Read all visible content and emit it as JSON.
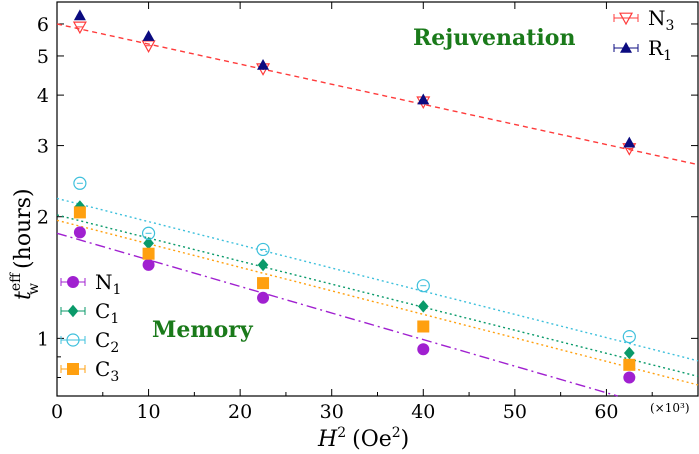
{
  "chart_data": {
    "type": "scatter",
    "xlabel": "H",
    "xlabel_sup": "2",
    "xlabel_units": "(Oe",
    "xlabel_units_sup": "2",
    "xlabel_units_end": ")",
    "ylabel": "t",
    "ylabel_sup": "eff",
    "ylabel_sub": "w",
    "ylabel_units": "(hours)",
    "x_scale_note": "(×10³)",
    "xlim": [
      0,
      70
    ],
    "ylim": [
      0.72,
      6.8
    ],
    "y_scale": "log",
    "xticks": [
      0,
      10,
      20,
      30,
      40,
      50,
      60
    ],
    "xtick_labels": [
      "0",
      "10",
      "20",
      "30",
      "40",
      "50",
      "60"
    ],
    "yticks": [
      1,
      2,
      3,
      4,
      5,
      6
    ],
    "ytick_labels": [
      "1",
      "2",
      "3",
      "4",
      "5",
      "6"
    ],
    "x_points": [
      2.5,
      10,
      22.5,
      40,
      62.5
    ],
    "annotations": [
      {
        "text": "Rejuvenation",
        "key": "rejuvenation"
      },
      {
        "text": "Memory",
        "key": "memory"
      }
    ],
    "series": [
      {
        "name": "N",
        "sub": "3",
        "marker": "triangle-down-open",
        "color": "#ff3b3b",
        "values": [
          5.9,
          5.3,
          4.65,
          3.85,
          2.95
        ],
        "fit": [
          6.0,
          2.85
        ],
        "dash": "5,4"
      },
      {
        "name": "R",
        "sub": "1",
        "marker": "triangle-up-filled",
        "color": "#0b0b80",
        "values": [
          6.3,
          5.6,
          4.75,
          3.9,
          3.05
        ],
        "fit": null,
        "dash": null
      },
      {
        "name": "N",
        "sub": "1",
        "marker": "circle-filled",
        "color": "#a020d0",
        "values": [
          1.83,
          1.52,
          1.26,
          0.94,
          0.8
        ],
        "fit": [
          1.82,
          0.68
        ],
        "dash": "10,4,2,4"
      },
      {
        "name": "C",
        "sub": "1",
        "marker": "diamond-filled",
        "color": "#0a9a6a",
        "values": [
          2.12,
          1.72,
          1.52,
          1.2,
          0.92
        ],
        "fit": [
          2.02,
          0.86
        ],
        "dash": "2,3"
      },
      {
        "name": "C",
        "sub": "2",
        "marker": "circle-open",
        "color": "#3ec0dc",
        "values": [
          2.42,
          1.82,
          1.66,
          1.35,
          1.01
        ],
        "fit": [
          2.22,
          0.94
        ],
        "dash": "2,3"
      },
      {
        "name": "C",
        "sub": "3",
        "marker": "square-filled",
        "color": "#ffa010",
        "values": [
          2.05,
          1.62,
          1.37,
          1.07,
          0.86
        ],
        "fit": [
          1.96,
          0.82
        ],
        "dash": "2,3"
      }
    ]
  }
}
